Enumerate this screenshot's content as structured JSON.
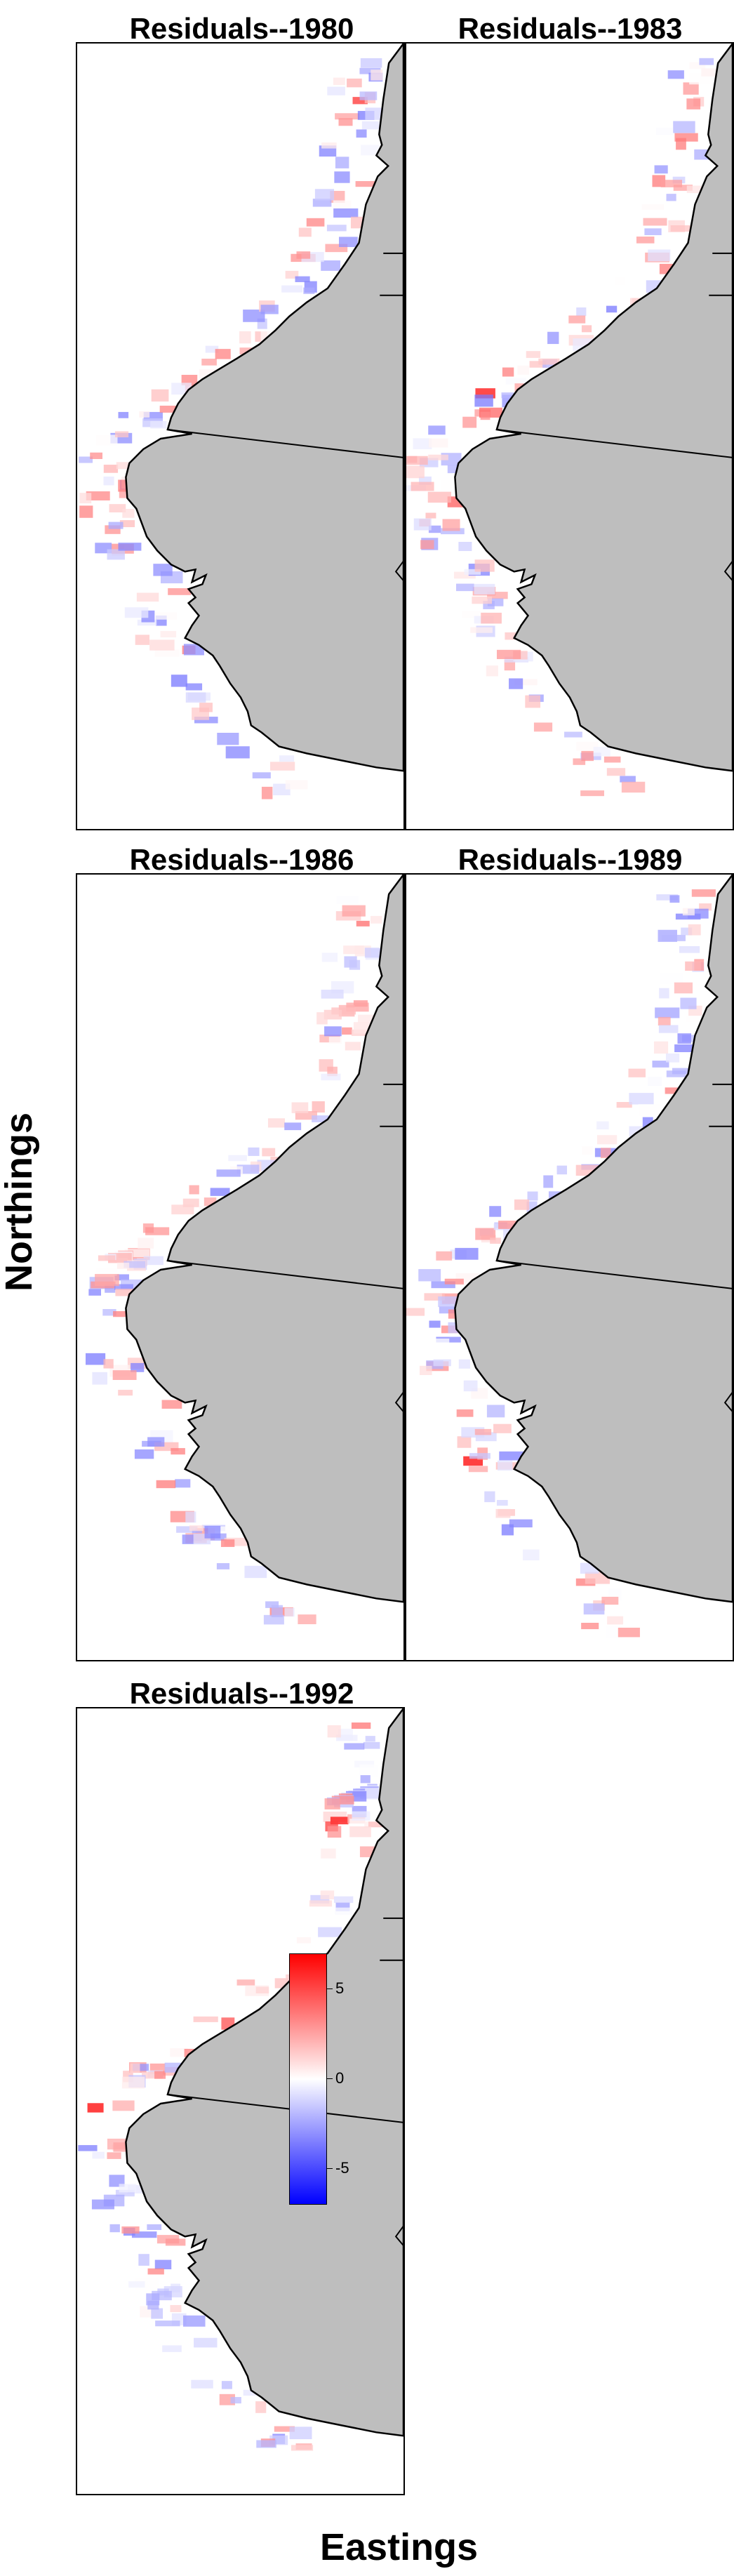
{
  "chart_data": {
    "type": "heatmap",
    "title": "",
    "xlabel": "Eastings",
    "ylabel": "Northings",
    "panels": [
      {
        "title": "Residuals--1980"
      },
      {
        "title": "Residuals--1983"
      },
      {
        "title": "Residuals--1986"
      },
      {
        "title": "Residuals--1989"
      },
      {
        "title": "Residuals--1992"
      }
    ],
    "colorbar": {
      "ticks": [
        "5",
        "0",
        "-5"
      ],
      "tick_values": [
        5,
        0,
        -5
      ],
      "range": [
        -8.5,
        8.5
      ],
      "low_color": "#0000ff",
      "mid_color": "#ffffff",
      "high_color": "#ff0000"
    },
    "land_color": "#bebebe"
  }
}
